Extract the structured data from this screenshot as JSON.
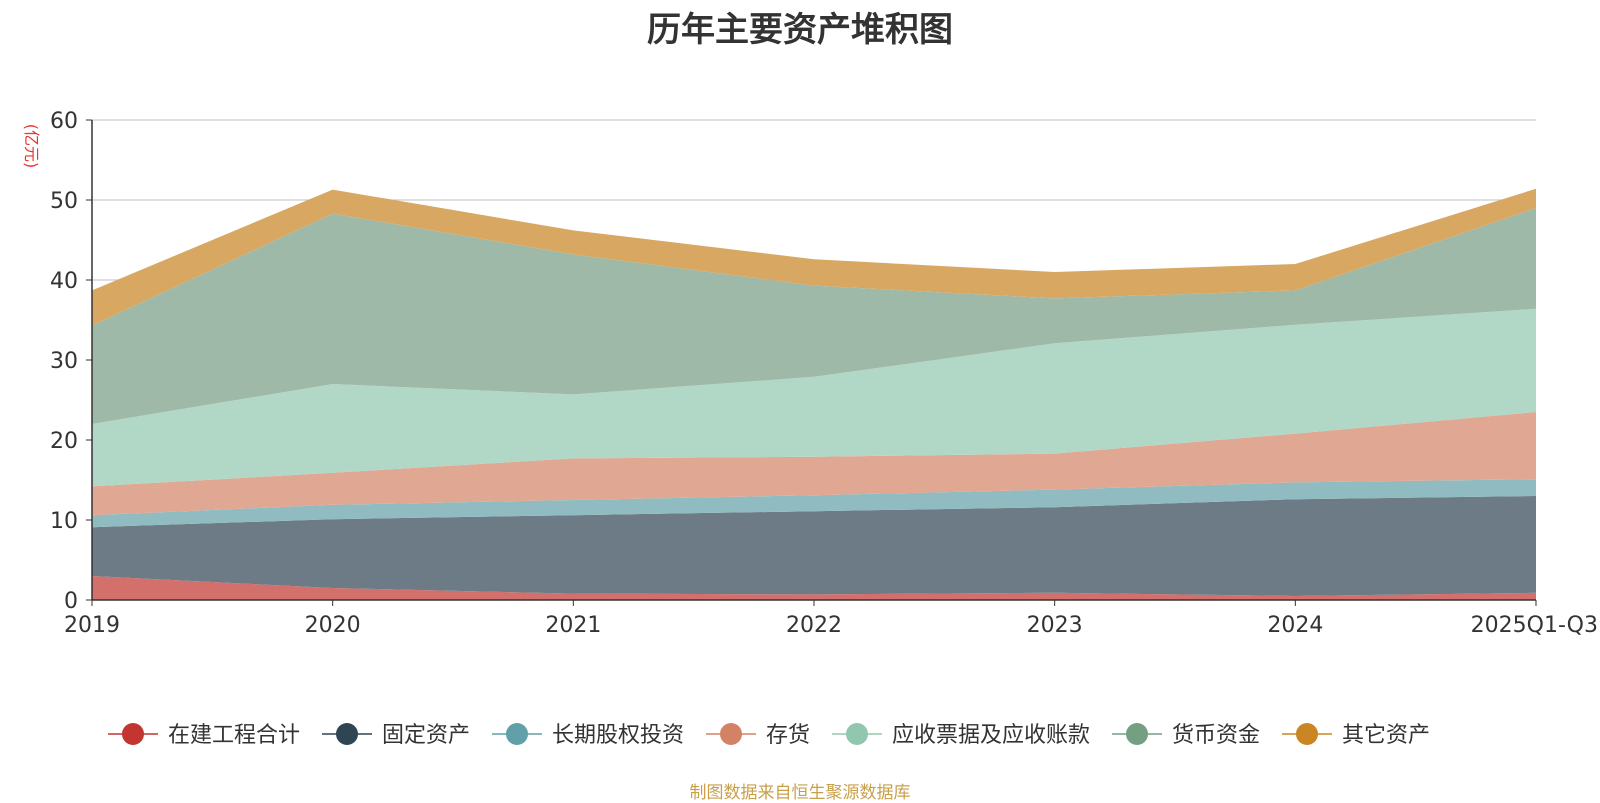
{
  "chart_data": {
    "type": "area",
    "stacked": true,
    "title": "历年主要资产堆积图",
    "ylabel": "(亿元)",
    "xlabel": "",
    "ylim": [
      0,
      60
    ],
    "yticks": [
      0,
      10,
      20,
      30,
      40,
      50,
      60
    ],
    "categories": [
      "2019",
      "2020",
      "2021",
      "2022",
      "2023",
      "2024",
      "2025Q1-Q3"
    ],
    "grid": true,
    "legend_position": "bottom",
    "series": [
      {
        "name": "在建工程合计",
        "color": "#c23531",
        "fill": "#d4706b",
        "values": [
          3.0,
          1.5,
          0.8,
          0.7,
          0.9,
          0.5,
          0.9
        ]
      },
      {
        "name": "固定资产",
        "color": "#2f4554",
        "fill": "#6d7b86",
        "values": [
          6.1,
          8.6,
          9.8,
          10.4,
          10.7,
          12.1,
          12.1
        ]
      },
      {
        "name": "长期股权投资",
        "color": "#61a0a8",
        "fill": "#90bcc1",
        "values": [
          1.5,
          1.8,
          1.9,
          2.0,
          2.2,
          2.1,
          2.1
        ]
      },
      {
        "name": "存货",
        "color": "#d48265",
        "fill": "#e0a793",
        "values": [
          3.6,
          4.0,
          5.2,
          4.8,
          4.5,
          6.1,
          8.4
        ]
      },
      {
        "name": "应收票据及应收账款",
        "color": "#91c7ae",
        "fill": "#b1d8c6",
        "values": [
          7.8,
          11.1,
          8.0,
          10.0,
          13.8,
          13.6,
          12.9
        ]
      },
      {
        "name": "货币资金",
        "color": "#749f83",
        "fill": "#9eb9a7",
        "values": [
          12.3,
          21.3,
          17.5,
          11.4,
          5.6,
          4.3,
          12.6
        ]
      },
      {
        "name": "其它资产",
        "color": "#ca8622",
        "fill": "#d8a862",
        "values": [
          4.4,
          3.0,
          3.0,
          3.3,
          3.3,
          3.3,
          2.4
        ]
      }
    ]
  },
  "source_note": "制图数据来自恒生聚源数据库"
}
